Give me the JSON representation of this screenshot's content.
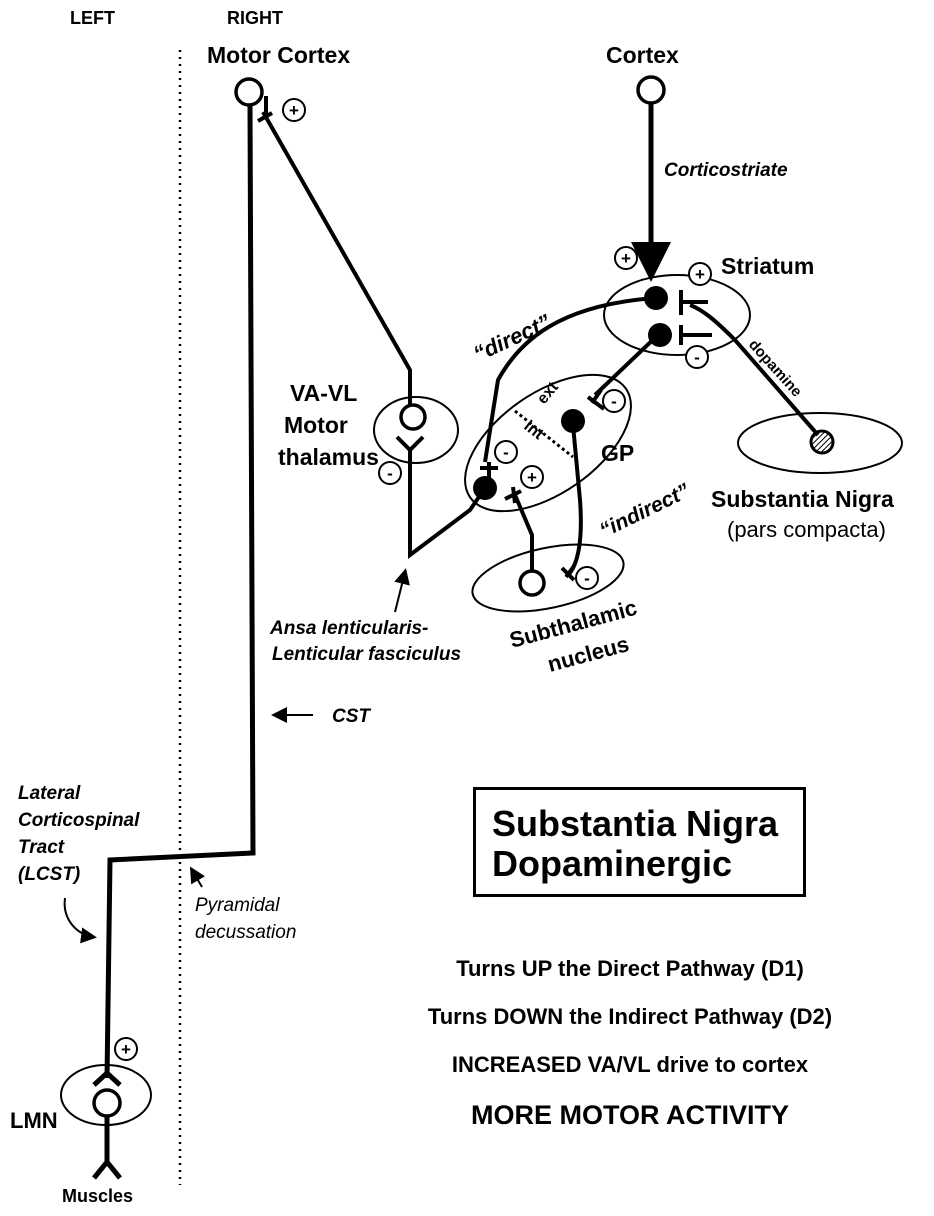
{
  "sides": {
    "left": "LEFT",
    "right": "RIGHT"
  },
  "nuclei": {
    "motor_cortex": "Motor Cortex",
    "cortex": "Cortex",
    "striatum": "Striatum",
    "thalamus_line1": "VA-VL",
    "thalamus_line2": "Motor",
    "thalamus_line3": "thalamus",
    "gp": "GP",
    "gp_ext": "ext",
    "gp_int": "int",
    "substantia_nigra": "Substantia Nigra",
    "pars_compacta": "(pars compacta)",
    "subthalamic_line1": "Subthalamic",
    "subthalamic_line2": "nucleus",
    "lmn": "LMN",
    "muscles": "Muscles"
  },
  "pathways": {
    "corticostriate": "Corticostriate",
    "direct": "“direct”",
    "indirect": "“indirect”",
    "dopamine": "dopamine",
    "ansa_line1": "Ansa lenticularis-",
    "ansa_line2": "Lenticular fasciculus",
    "cst": "CST",
    "lcst_line1": "Lateral",
    "lcst_line2": "Corticospinal",
    "lcst_line3": "Tract",
    "lcst_line4": "(LCST)",
    "decussation_line1": "Pyramidal",
    "decussation_line2": "decussation"
  },
  "signs": {
    "plus": "+",
    "minus": "-"
  },
  "title": {
    "line1": "Substantia Nigra",
    "line2": "Dopaminergic"
  },
  "summary": [
    "Turns UP the Direct Pathway (D1)",
    "Turns DOWN the Indirect Pathway (D2)",
    "INCREASED VA/VL drive to cortex",
    "MORE MOTOR ACTIVITY"
  ]
}
